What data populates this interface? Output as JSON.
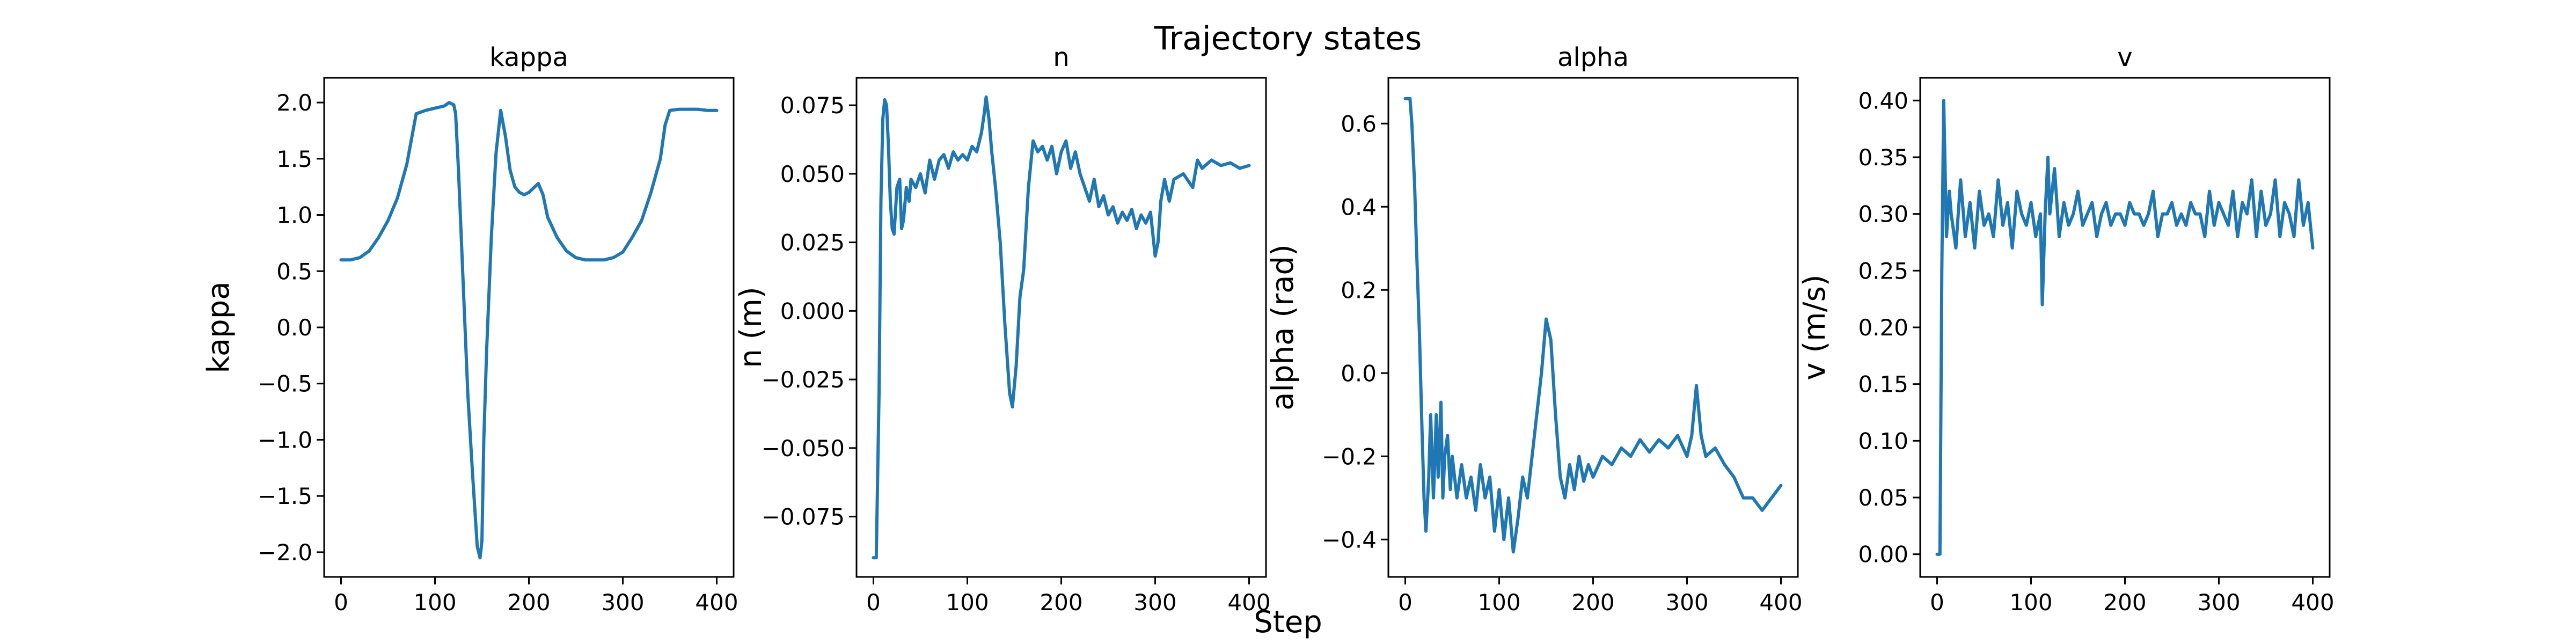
{
  "figure": {
    "title": "Trajectory states",
    "shared_xlabel": "Step",
    "line_color": "#1f77b4"
  },
  "chart_data": [
    {
      "type": "line",
      "title": "kappa",
      "xlabel": "",
      "ylabel": "kappa",
      "xlim": [
        -18,
        418
      ],
      "ylim": [
        -2.22,
        2.22
      ],
      "xticks": [
        0,
        100,
        200,
        300,
        400
      ],
      "yticks": [
        -2.0,
        -1.5,
        -1.0,
        -0.5,
        0.0,
        0.5,
        1.0,
        1.5,
        2.0
      ],
      "ytick_labels": [
        "−2.0",
        "−1.5",
        "−1.0",
        "−0.5",
        "0.0",
        "0.5",
        "1.0",
        "1.5",
        "2.0"
      ],
      "series": [
        {
          "x": [
            0,
            10,
            20,
            30,
            40,
            50,
            60,
            70,
            80,
            90,
            100,
            110,
            115,
            120,
            122,
            125,
            130,
            135,
            140,
            145,
            148,
            150,
            152,
            155,
            160,
            165,
            170,
            175,
            180,
            185,
            190,
            195,
            200,
            210,
            215,
            220,
            230,
            240,
            250,
            260,
            270,
            280,
            290,
            300,
            310,
            320,
            330,
            340,
            345,
            350,
            360,
            370,
            380,
            390,
            400
          ],
          "y": [
            0.6,
            0.6,
            0.62,
            0.68,
            0.8,
            0.95,
            1.15,
            1.45,
            1.9,
            1.93,
            1.95,
            1.97,
            2.0,
            1.98,
            1.9,
            1.4,
            0.4,
            -0.6,
            -1.3,
            -1.95,
            -2.05,
            -1.9,
            -1.0,
            -0.2,
            0.8,
            1.55,
            1.93,
            1.7,
            1.4,
            1.25,
            1.2,
            1.18,
            1.2,
            1.28,
            1.18,
            0.98,
            0.8,
            0.68,
            0.62,
            0.6,
            0.6,
            0.6,
            0.62,
            0.67,
            0.8,
            0.95,
            1.2,
            1.5,
            1.8,
            1.93,
            1.94,
            1.94,
            1.94,
            1.93,
            1.93
          ]
        }
      ]
    },
    {
      "type": "line",
      "title": "n",
      "xlabel": "",
      "ylabel": "n (m)",
      "xlim": [
        -18,
        418
      ],
      "ylim": [
        -0.097,
        0.085
      ],
      "xticks": [
        0,
        100,
        200,
        300,
        400
      ],
      "yticks": [
        -0.075,
        -0.05,
        -0.025,
        0.0,
        0.025,
        0.05,
        0.075
      ],
      "ytick_labels": [
        "−0.075",
        "−0.050",
        "−0.025",
        "0.000",
        "0.025",
        "0.050",
        "0.075"
      ],
      "series": [
        {
          "x": [
            0,
            3,
            6,
            8,
            10,
            12,
            14,
            16,
            18,
            20,
            22,
            25,
            28,
            30,
            32,
            35,
            38,
            40,
            45,
            50,
            55,
            60,
            65,
            70,
            75,
            80,
            85,
            90,
            95,
            100,
            105,
            110,
            115,
            118,
            120,
            123,
            126,
            130,
            135,
            140,
            145,
            148,
            152,
            156,
            160,
            165,
            170,
            175,
            180,
            185,
            190,
            195,
            200,
            205,
            210,
            215,
            220,
            225,
            230,
            235,
            240,
            245,
            250,
            255,
            260,
            265,
            270,
            275,
            280,
            285,
            290,
            295,
            300,
            303,
            306,
            310,
            315,
            320,
            330,
            340,
            345,
            350,
            360,
            370,
            380,
            390,
            400
          ],
          "y": [
            -0.09,
            -0.09,
            -0.03,
            0.04,
            0.07,
            0.077,
            0.075,
            0.06,
            0.04,
            0.03,
            0.028,
            0.045,
            0.048,
            0.03,
            0.033,
            0.045,
            0.04,
            0.048,
            0.045,
            0.05,
            0.043,
            0.055,
            0.048,
            0.055,
            0.057,
            0.052,
            0.058,
            0.055,
            0.057,
            0.055,
            0.06,
            0.058,
            0.065,
            0.072,
            0.078,
            0.07,
            0.058,
            0.045,
            0.025,
            -0.005,
            -0.03,
            -0.035,
            -0.02,
            0.005,
            0.015,
            0.045,
            0.062,
            0.058,
            0.06,
            0.055,
            0.06,
            0.05,
            0.058,
            0.062,
            0.052,
            0.058,
            0.05,
            0.045,
            0.04,
            0.048,
            0.038,
            0.042,
            0.035,
            0.038,
            0.032,
            0.036,
            0.033,
            0.037,
            0.03,
            0.035,
            0.032,
            0.036,
            0.02,
            0.025,
            0.04,
            0.048,
            0.04,
            0.048,
            0.05,
            0.045,
            0.055,
            0.052,
            0.055,
            0.053,
            0.054,
            0.052,
            0.053
          ]
        }
      ]
    },
    {
      "type": "line",
      "title": "alpha",
      "xlabel": "",
      "ylabel": "alpha (rad)",
      "xlim": [
        -18,
        418
      ],
      "ylim": [
        -0.49,
        0.71
      ],
      "xticks": [
        0,
        100,
        200,
        300,
        400
      ],
      "yticks": [
        -0.4,
        -0.2,
        0.0,
        0.2,
        0.4,
        0.6
      ],
      "ytick_labels": [
        "−0.4",
        "−0.2",
        "0.0",
        "0.2",
        "0.4",
        "0.6"
      ],
      "series": [
        {
          "x": [
            0,
            3,
            5,
            7,
            10,
            12,
            15,
            18,
            20,
            22,
            25,
            27,
            30,
            33,
            35,
            38,
            40,
            42,
            45,
            48,
            50,
            55,
            60,
            65,
            70,
            75,
            80,
            85,
            90,
            95,
            100,
            105,
            110,
            115,
            120,
            125,
            130,
            135,
            140,
            145,
            150,
            155,
            160,
            165,
            170,
            175,
            180,
            185,
            190,
            195,
            200,
            210,
            220,
            230,
            240,
            250,
            260,
            270,
            280,
            290,
            300,
            305,
            310,
            315,
            320,
            330,
            340,
            350,
            360,
            370,
            380,
            390,
            400
          ],
          "y": [
            0.66,
            0.66,
            0.66,
            0.6,
            0.45,
            0.3,
            0.1,
            -0.15,
            -0.3,
            -0.38,
            -0.25,
            -0.1,
            -0.3,
            -0.1,
            -0.25,
            -0.07,
            -0.3,
            -0.2,
            -0.15,
            -0.28,
            -0.2,
            -0.3,
            -0.22,
            -0.3,
            -0.25,
            -0.33,
            -0.22,
            -0.3,
            -0.25,
            -0.38,
            -0.28,
            -0.4,
            -0.3,
            -0.43,
            -0.35,
            -0.25,
            -0.3,
            -0.2,
            -0.1,
            0.0,
            0.13,
            0.08,
            -0.1,
            -0.25,
            -0.3,
            -0.22,
            -0.28,
            -0.2,
            -0.26,
            -0.22,
            -0.25,
            -0.2,
            -0.22,
            -0.18,
            -0.2,
            -0.16,
            -0.19,
            -0.16,
            -0.18,
            -0.15,
            -0.2,
            -0.15,
            -0.03,
            -0.15,
            -0.2,
            -0.18,
            -0.22,
            -0.25,
            -0.3,
            -0.3,
            -0.33,
            -0.3,
            -0.27
          ]
        }
      ]
    },
    {
      "type": "line",
      "title": "v",
      "xlabel": "",
      "ylabel": "v (m/s)",
      "xlim": [
        -18,
        418
      ],
      "ylim": [
        -0.02,
        0.42
      ],
      "xticks": [
        0,
        100,
        200,
        300,
        400
      ],
      "yticks": [
        0.0,
        0.05,
        0.1,
        0.15,
        0.2,
        0.25,
        0.3,
        0.35,
        0.4
      ],
      "ytick_labels": [
        "0.00",
        "0.05",
        "0.10",
        "0.15",
        "0.20",
        "0.25",
        "0.30",
        "0.35",
        "0.40"
      ],
      "series": [
        {
          "x": [
            0,
            3,
            5,
            7,
            10,
            13,
            15,
            20,
            25,
            30,
            35,
            40,
            45,
            50,
            55,
            60,
            65,
            70,
            75,
            80,
            85,
            90,
            95,
            100,
            105,
            110,
            112,
            115,
            118,
            120,
            125,
            130,
            135,
            140,
            145,
            150,
            155,
            160,
            165,
            170,
            175,
            180,
            185,
            190,
            195,
            200,
            205,
            210,
            215,
            220,
            225,
            230,
            235,
            240,
            245,
            250,
            255,
            260,
            265,
            270,
            275,
            280,
            285,
            290,
            295,
            300,
            305,
            310,
            315,
            320,
            325,
            330,
            335,
            340,
            345,
            350,
            355,
            360,
            365,
            370,
            375,
            380,
            385,
            390,
            395,
            400
          ],
          "y": [
            0.0,
            0.0,
            0.25,
            0.4,
            0.28,
            0.32,
            0.3,
            0.27,
            0.33,
            0.28,
            0.31,
            0.27,
            0.32,
            0.29,
            0.3,
            0.28,
            0.33,
            0.29,
            0.31,
            0.27,
            0.32,
            0.3,
            0.29,
            0.31,
            0.28,
            0.3,
            0.22,
            0.3,
            0.35,
            0.3,
            0.34,
            0.28,
            0.31,
            0.29,
            0.3,
            0.32,
            0.29,
            0.3,
            0.31,
            0.28,
            0.3,
            0.31,
            0.29,
            0.3,
            0.3,
            0.29,
            0.31,
            0.3,
            0.3,
            0.29,
            0.3,
            0.32,
            0.28,
            0.3,
            0.3,
            0.31,
            0.29,
            0.3,
            0.29,
            0.31,
            0.3,
            0.3,
            0.28,
            0.32,
            0.29,
            0.31,
            0.3,
            0.29,
            0.32,
            0.28,
            0.31,
            0.3,
            0.33,
            0.28,
            0.32,
            0.29,
            0.3,
            0.33,
            0.28,
            0.31,
            0.3,
            0.28,
            0.33,
            0.29,
            0.31,
            0.27
          ]
        }
      ]
    }
  ]
}
